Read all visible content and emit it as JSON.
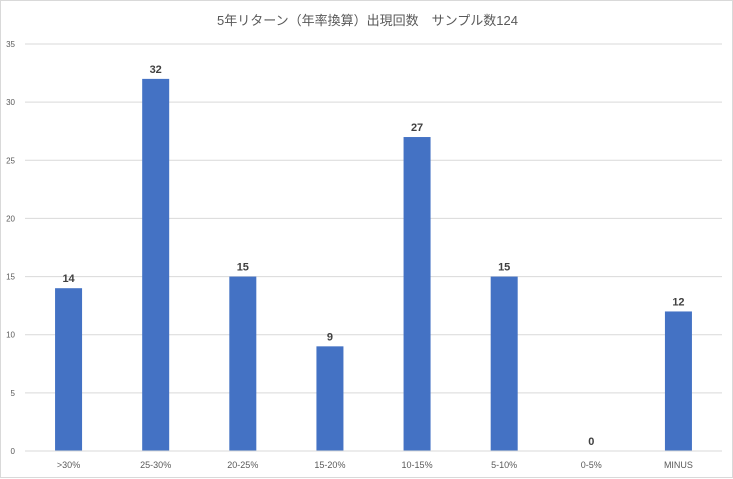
{
  "chart_data": {
    "type": "bar",
    "title": "5年リターン（年率換算）出現回数　サンプル数124",
    "xlabel": "",
    "ylabel": "",
    "categories": [
      ">30%",
      "25-30%",
      "20-25%",
      "15-20%",
      "10-15%",
      "5-10%",
      "0-5%",
      "MINUS"
    ],
    "values": [
      14,
      32,
      15,
      9,
      27,
      15,
      0,
      12
    ],
    "ylim": [
      0,
      35
    ],
    "yticks": [
      0,
      5,
      10,
      15,
      20,
      25,
      30,
      35
    ],
    "grid": true,
    "legend": "none",
    "data_labels": true,
    "bar_color": "#4472c4",
    "grid_color": "#d9d9d9",
    "text_color": "#595959"
  }
}
